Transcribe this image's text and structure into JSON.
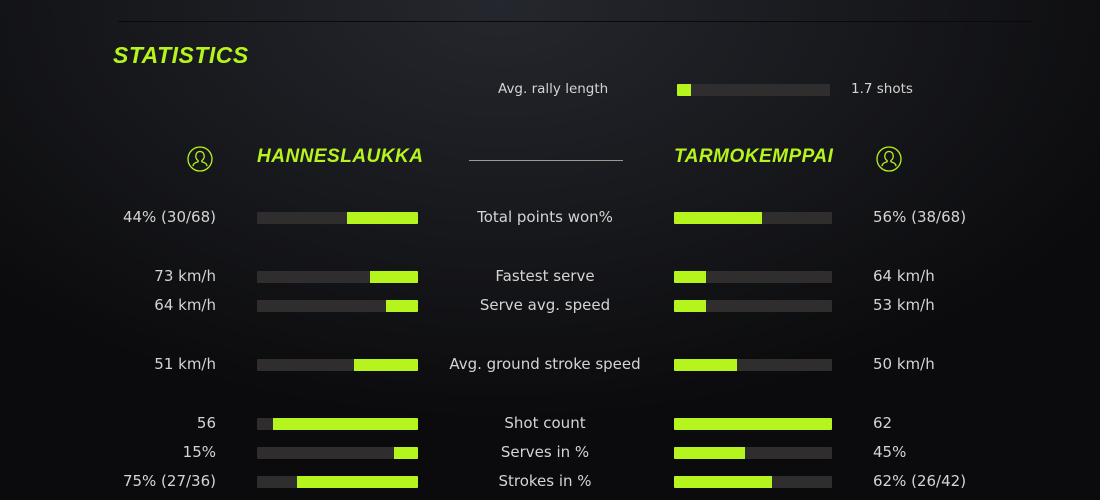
{
  "title": "STATISTICS",
  "rally": {
    "label": "Avg. rally length",
    "value": "1.7 shots",
    "fraction": 0.09
  },
  "players": {
    "left": {
      "name": "HANNESLAUKKA",
      "icon": "user-icon"
    },
    "right": {
      "name": "TARMOKEMPPAI",
      "icon": "user-icon"
    }
  },
  "accent_color": "#b5f51d",
  "stats": [
    {
      "label": "Total points won%",
      "left": "44% (30/68)",
      "right": "56% (38/68)",
      "left_fraction": 0.44,
      "right_fraction": 0.56
    },
    {
      "label": "Fastest serve",
      "left": "73 km/h",
      "right": "64 km/h",
      "left_fraction": 0.3,
      "right_fraction": 0.2
    },
    {
      "label": "Serve avg. speed",
      "left": "64 km/h",
      "right": "53 km/h",
      "left_fraction": 0.2,
      "right_fraction": 0.2
    },
    {
      "label": "Avg. ground stroke speed",
      "left": "51 km/h",
      "right": "50 km/h",
      "left_fraction": 0.4,
      "right_fraction": 0.4
    },
    {
      "label": "Shot count",
      "left": "56",
      "right": "62",
      "left_fraction": 0.9,
      "right_fraction": 1.0
    },
    {
      "label": "Serves in %",
      "left": "15%",
      "right": "45%",
      "left_fraction": 0.15,
      "right_fraction": 0.45
    },
    {
      "label": "Strokes in %",
      "left": "75% (27/36)",
      "right": "62% (26/42)",
      "left_fraction": 0.75,
      "right_fraction": 0.62
    }
  ]
}
